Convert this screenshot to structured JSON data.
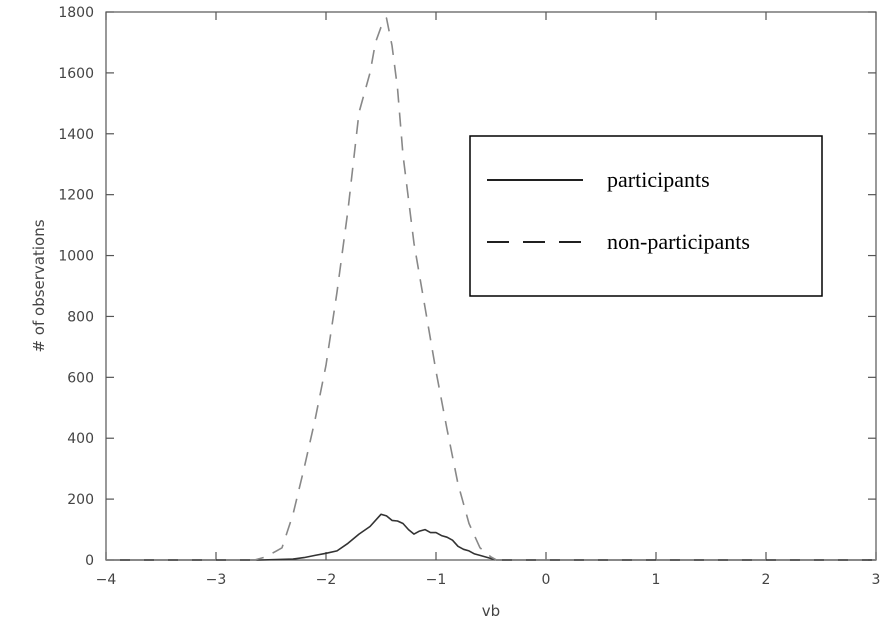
{
  "chart_data": {
    "type": "line",
    "xlabel": "vb",
    "ylabel": "# of observations",
    "xlim": [
      -4,
      3
    ],
    "ylim": [
      0,
      1800
    ],
    "xticks": [
      -4,
      -3,
      -2,
      -1,
      0,
      1,
      2,
      3
    ],
    "yticks": [
      0,
      200,
      400,
      600,
      800,
      1000,
      1200,
      1400,
      1600,
      1800
    ],
    "grid": false,
    "legend_position": "top-right",
    "series": [
      {
        "name": "participants",
        "style": "solid",
        "color": "#333333",
        "x": [
          -4,
          -2.6,
          -2.3,
          -2.2,
          -2.1,
          -2.0,
          -1.9,
          -1.8,
          -1.7,
          -1.6,
          -1.5,
          -1.45,
          -1.4,
          -1.35,
          -1.3,
          -1.25,
          -1.2,
          -1.15,
          -1.1,
          -1.05,
          -1.0,
          -0.95,
          -0.9,
          -0.85,
          -0.8,
          -0.75,
          -0.7,
          -0.65,
          -0.6,
          -0.5,
          -0.45,
          3
        ],
        "y": [
          0,
          0,
          3,
          8,
          15,
          22,
          30,
          55,
          85,
          110,
          150,
          145,
          130,
          128,
          120,
          100,
          85,
          95,
          100,
          90,
          90,
          80,
          75,
          65,
          45,
          35,
          30,
          20,
          15,
          5,
          0,
          0
        ]
      },
      {
        "name": "non-participants",
        "style": "dashed",
        "color": "#888888",
        "x": [
          -4,
          -2.65,
          -2.55,
          -2.45,
          -2.4,
          -2.3,
          -2.2,
          -2.1,
          -2.0,
          -1.9,
          -1.8,
          -1.7,
          -1.6,
          -1.55,
          -1.5,
          -1.45,
          -1.4,
          -1.35,
          -1.3,
          -1.2,
          -1.1,
          -1.0,
          -0.9,
          -0.8,
          -0.7,
          -0.6,
          -0.5,
          -0.45,
          3
        ],
        "y": [
          0,
          0,
          10,
          30,
          40,
          150,
          300,
          460,
          640,
          880,
          1150,
          1470,
          1600,
          1700,
          1750,
          1780,
          1690,
          1550,
          1330,
          1040,
          830,
          620,
          430,
          250,
          120,
          40,
          10,
          0,
          0
        ]
      }
    ]
  }
}
